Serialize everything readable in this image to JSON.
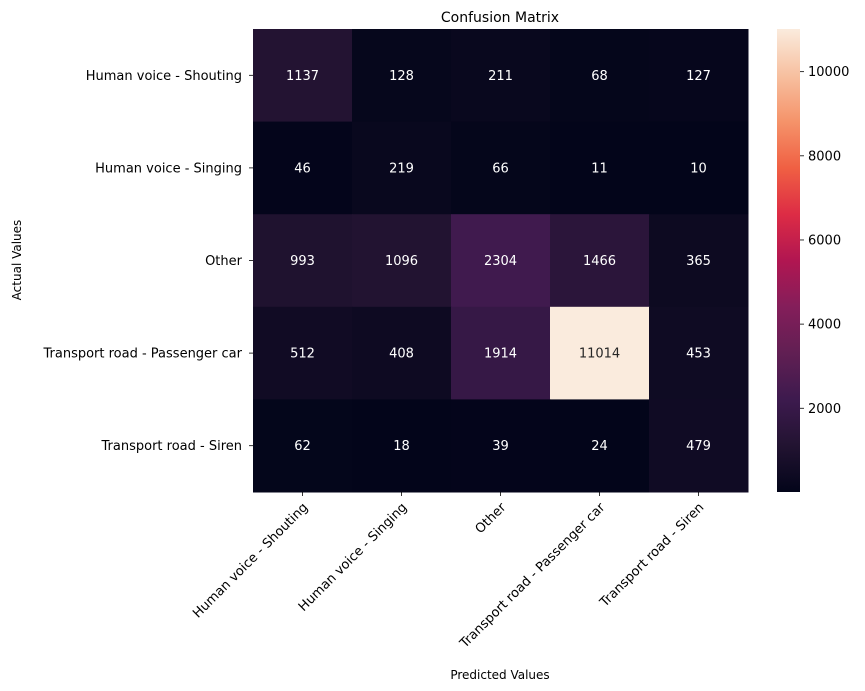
{
  "chart_data": {
    "type": "heatmap",
    "title": "Confusion Matrix",
    "xlabel": "Predicted Values",
    "ylabel": "Actual Values",
    "x_categories": [
      "Human voice - Shouting",
      "Human voice - Singing",
      "Other",
      "Transport road - Passenger car",
      "Transport road - Siren"
    ],
    "y_categories": [
      "Human voice - Shouting",
      "Human voice - Singing",
      "Other",
      "Transport road - Passenger car",
      "Transport road - Siren"
    ],
    "values": [
      [
        1137,
        128,
        211,
        68,
        127
      ],
      [
        46,
        219,
        66,
        11,
        10
      ],
      [
        993,
        1096,
        2304,
        1466,
        365
      ],
      [
        512,
        408,
        1914,
        11014,
        453
      ],
      [
        62,
        18,
        39,
        24,
        479
      ]
    ],
    "colormap": "rocket",
    "vmin": 10,
    "vmax": 11014,
    "colorbar_ticks": [
      2000,
      4000,
      6000,
      8000,
      10000
    ],
    "colorbar_tick_labels": [
      "2000",
      "4000",
      "6000",
      "8000",
      "10000"
    ],
    "annotation_light_color": "#ffffff",
    "annotation_dark_color": "#262626"
  }
}
